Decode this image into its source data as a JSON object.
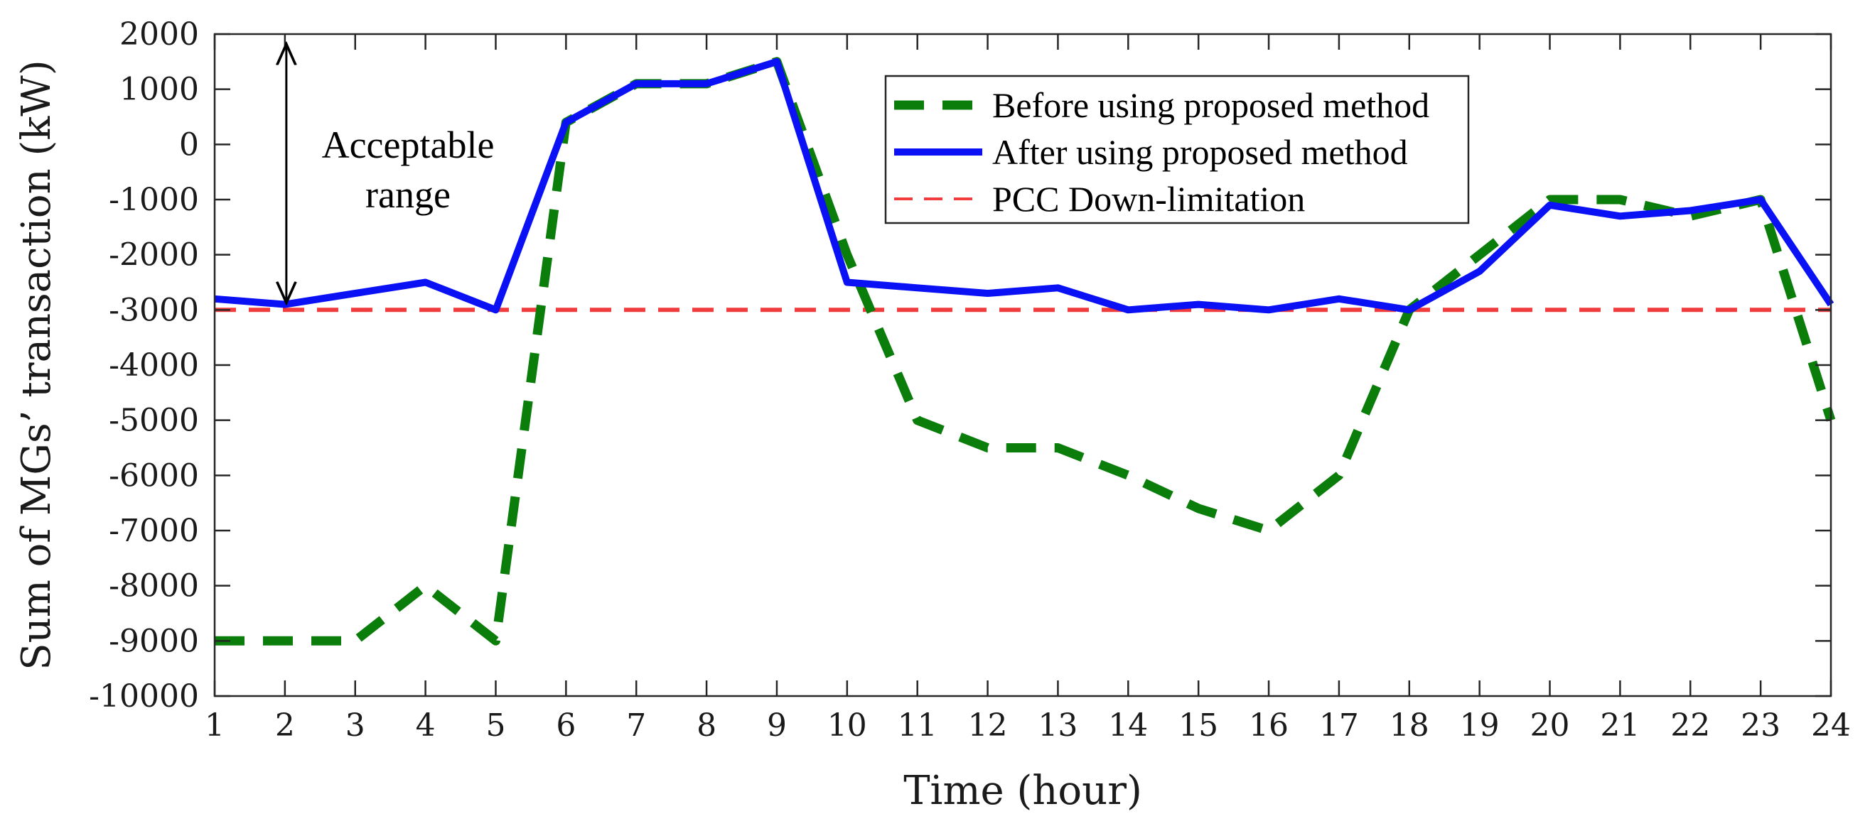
{
  "chart_data": {
    "type": "line",
    "title": "",
    "xlabel": "Time (hour)",
    "ylabel": "Sum of MGs’ transaction (kW)",
    "xlim": [
      1,
      24
    ],
    "ylim": [
      -10000,
      2000
    ],
    "x": [
      1,
      2,
      3,
      4,
      5,
      6,
      7,
      8,
      9,
      10,
      11,
      12,
      13,
      14,
      15,
      16,
      17,
      18,
      19,
      20,
      21,
      22,
      23,
      24
    ],
    "xticks": [
      "1",
      "2",
      "3",
      "4",
      "5",
      "6",
      "7",
      "8",
      "9",
      "10",
      "11",
      "12",
      "13",
      "14",
      "15",
      "16",
      "17",
      "18",
      "19",
      "20",
      "21",
      "22",
      "23",
      "24"
    ],
    "yticks": [
      2000,
      1000,
      0,
      -1000,
      -2000,
      -3000,
      -4000,
      -5000,
      -6000,
      -7000,
      -8000,
      -9000,
      -10000
    ],
    "ytick_labels": [
      "2000",
      "1000",
      "0",
      "-1000",
      "-2000",
      "-3000",
      "-4000",
      "-5000",
      "-6000",
      "-7000",
      "-8000",
      "-9000",
      "-10000"
    ],
    "grid": false,
    "legend_position": "top-center",
    "series": [
      {
        "name": "Before using proposed method",
        "color": "#0a7d0a",
        "style": "dashed",
        "values": [
          -9000,
          -9000,
          -9000,
          -8000,
          -9000,
          400,
          1100,
          1100,
          1500,
          -2000,
          -5000,
          -5500,
          -5500,
          -6000,
          -6600,
          -7000,
          -6000,
          -3000,
          -2000,
          -1000,
          -1000,
          -1300,
          -1000,
          -5000
        ]
      },
      {
        "name": "After using proposed method",
        "color": "#0a12f5",
        "style": "solid",
        "values": [
          -2800,
          -2900,
          -2700,
          -2500,
          -3000,
          400,
          1100,
          1100,
          1500,
          -2500,
          -2600,
          -2700,
          -2600,
          -3000,
          -2900,
          -3000,
          -2800,
          -3000,
          -2300,
          -1100,
          -1300,
          -1200,
          -1000,
          -2900
        ]
      },
      {
        "name": "PCC Down-limitation",
        "color": "#f03c3c",
        "style": "dashed-thin",
        "values": [
          -3000,
          -3000,
          -3000,
          -3000,
          -3000,
          -3000,
          -3000,
          -3000,
          -3000,
          -3000,
          -3000,
          -3000,
          -3000,
          -3000,
          -3000,
          -3000,
          -3000,
          -3000,
          -3000,
          -3000,
          -3000,
          -3000,
          -3000,
          -3000
        ]
      }
    ],
    "annotations": [
      {
        "text_line1": "Acceptable",
        "text_line2": "range",
        "arrow_x": 2,
        "arrow_from": 2000,
        "arrow_to": -3000
      }
    ]
  }
}
